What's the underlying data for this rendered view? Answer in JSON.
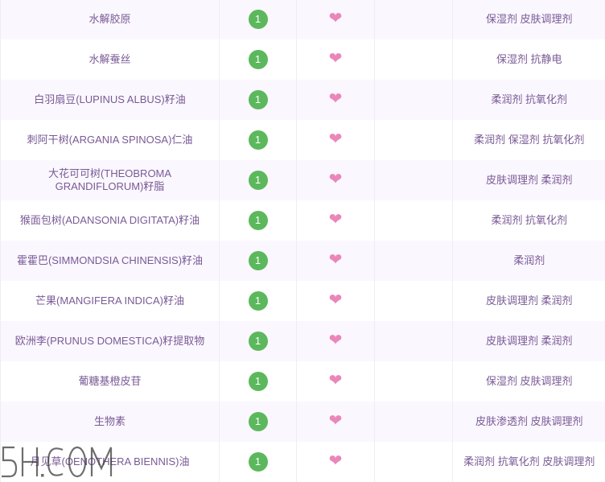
{
  "rows": [
    {
      "name": "水解胶原",
      "score": "1",
      "function": "保湿剂 皮肤调理剂"
    },
    {
      "name": "水解蚕丝",
      "score": "1",
      "function": "保湿剂 抗静电"
    },
    {
      "name": "白羽扇豆(LUPINUS ALBUS)籽油",
      "score": "1",
      "function": "柔润剂 抗氧化剂"
    },
    {
      "name": "刺阿干树(ARGANIA SPINOSA)仁油",
      "score": "1",
      "function": "柔润剂 保湿剂 抗氧化剂"
    },
    {
      "name": "大花可可树(THEOBROMA GRANDIFLORUM)籽脂",
      "score": "1",
      "function": "皮肤调理剂 柔润剂"
    },
    {
      "name": "猴面包树(ADANSONIA DIGITATA)籽油",
      "score": "1",
      "function": "柔润剂 抗氧化剂"
    },
    {
      "name": "霍霍巴(SIMMONDSIA CHINENSIS)籽油",
      "score": "1",
      "function": "柔润剂"
    },
    {
      "name": "芒果(MANGIFERA INDICA)籽油",
      "score": "1",
      "function": "皮肤调理剂 柔润剂"
    },
    {
      "name": "欧洲李(PRUNUS DOMESTICA)籽提取物",
      "score": "1",
      "function": "皮肤调理剂 柔润剂"
    },
    {
      "name": "葡糖基橙皮苷",
      "score": "1",
      "function": "保湿剂 皮肤调理剂"
    },
    {
      "name": "生物素",
      "score": "1",
      "function": "皮肤渗透剂 皮肤调理剂"
    },
    {
      "name": "月见草(OENOTHERA BIENNIS)油",
      "score": "1",
      "function": "柔润剂 抗氧化剂 皮肤调理剂"
    }
  ],
  "heart_icon": "heart-icon",
  "watermark": "5H.COM",
  "colors": {
    "badge": "#5cb85c",
    "heart": "#ea86b9",
    "text": "#7a5a95"
  }
}
